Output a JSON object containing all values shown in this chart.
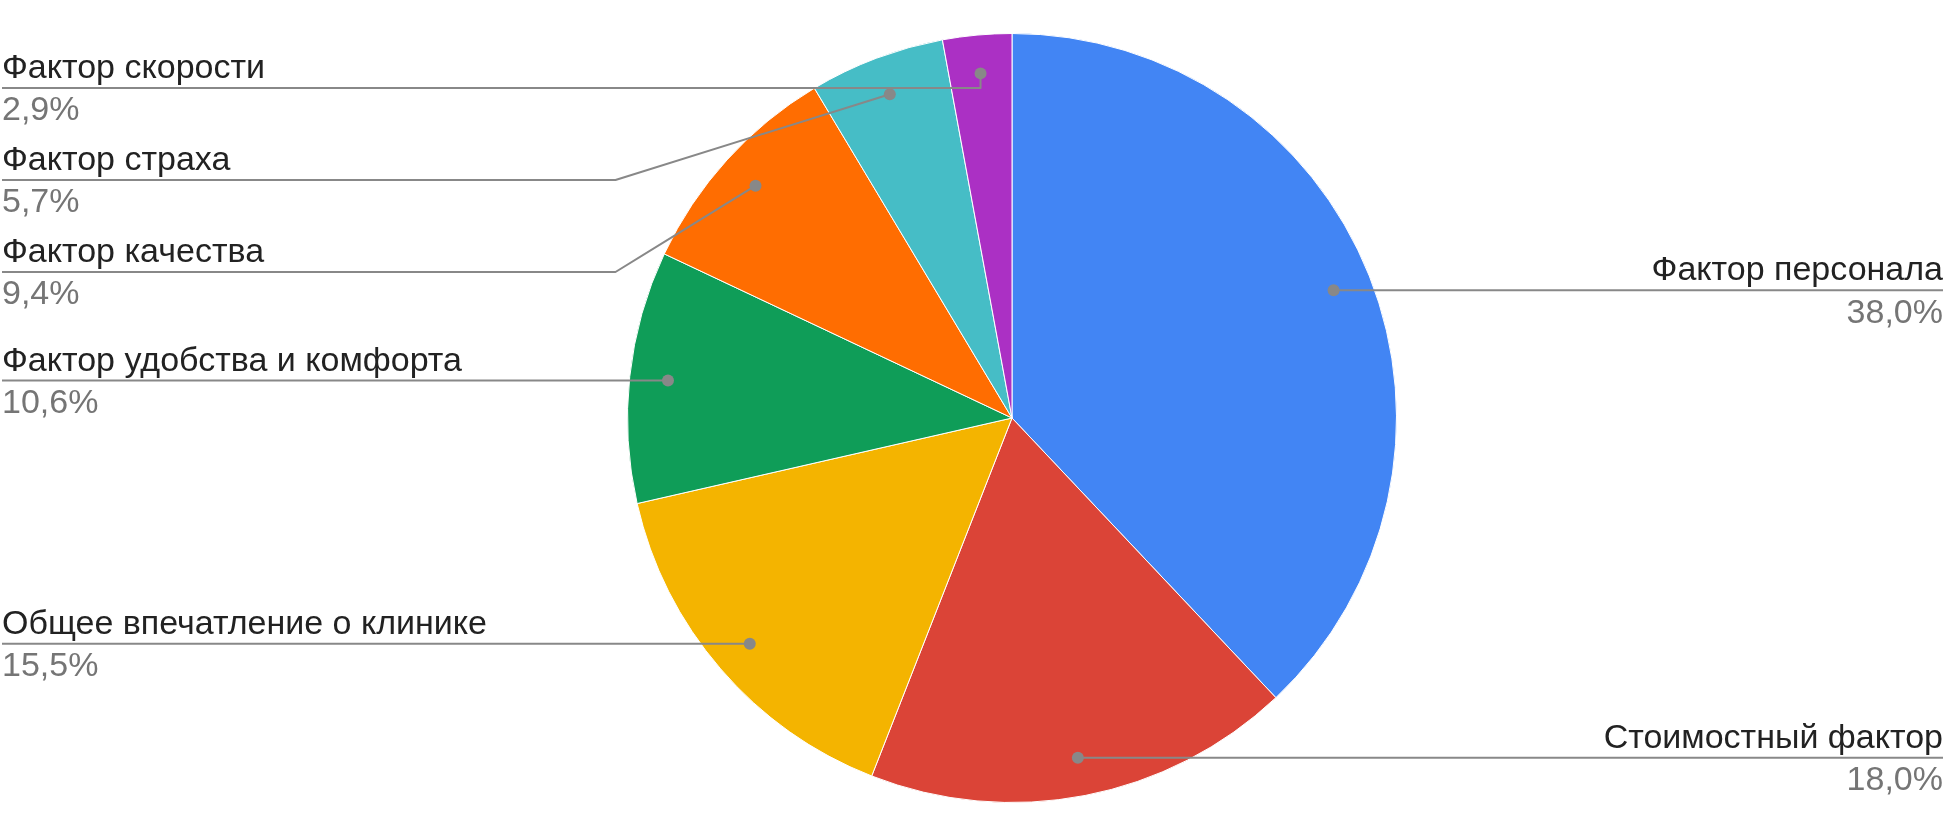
{
  "chart_data": {
    "type": "pie",
    "categories": [
      "Фактор персонала",
      "Стоимостный фактор",
      "Общее впечатление о клинике",
      "Фактор удобства и комфорта",
      "Фактор качества",
      "Фактор страха",
      "Фактор скорости"
    ],
    "values": [
      38.0,
      18.0,
      15.5,
      10.6,
      9.4,
      5.7,
      2.9
    ],
    "colors": [
      "#4285f4",
      "#db4437",
      "#f4b400",
      "#0f9d58",
      "#ff6d01",
      "#46bdc6",
      "#ab30c4"
    ],
    "value_labels": [
      "38,0%",
      "18,0%",
      "15,5%",
      "10,6%",
      "9,4%",
      "5,7%",
      "2,9%"
    ]
  }
}
